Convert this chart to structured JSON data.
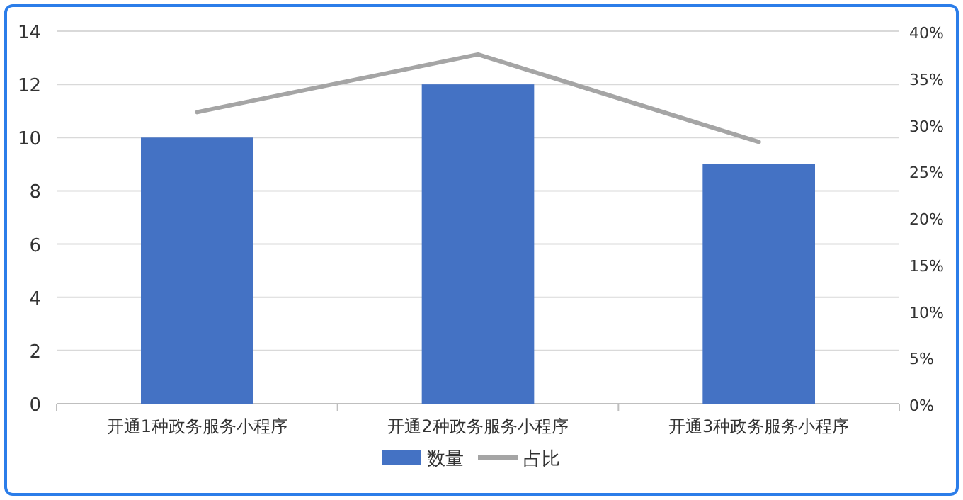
{
  "chart_data": {
    "type": "bar",
    "categories": [
      "开通1种政务服务小程序",
      "开通2种政务服务小程序",
      "开通3种政务服务小程序"
    ],
    "series": [
      {
        "name": "数量",
        "color": "#4472c4",
        "values": [
          10,
          12,
          9
        ]
      },
      {
        "name": "占比",
        "type": "line",
        "axis": "y2",
        "color": "#a5a5a5",
        "values": [
          31.3,
          37.5,
          28.1
        ]
      }
    ],
    "ylim": [
      0,
      14
    ],
    "yticks": [
      0,
      2,
      4,
      6,
      8,
      10,
      12,
      14
    ],
    "y2lim": [
      0,
      40
    ],
    "y2ticks": [
      {
        "value": 0,
        "label": "0%"
      },
      {
        "value": 5,
        "label": "5%"
      },
      {
        "value": 10,
        "label": "10%"
      },
      {
        "value": 15,
        "label": "15%"
      },
      {
        "value": 20,
        "label": "20%"
      },
      {
        "value": 25,
        "label": "25%"
      },
      {
        "value": 30,
        "label": "30%"
      },
      {
        "value": 35,
        "label": "35%"
      },
      {
        "value": 40,
        "label": "40%"
      }
    ],
    "grid": "y",
    "legend": "bottom"
  }
}
